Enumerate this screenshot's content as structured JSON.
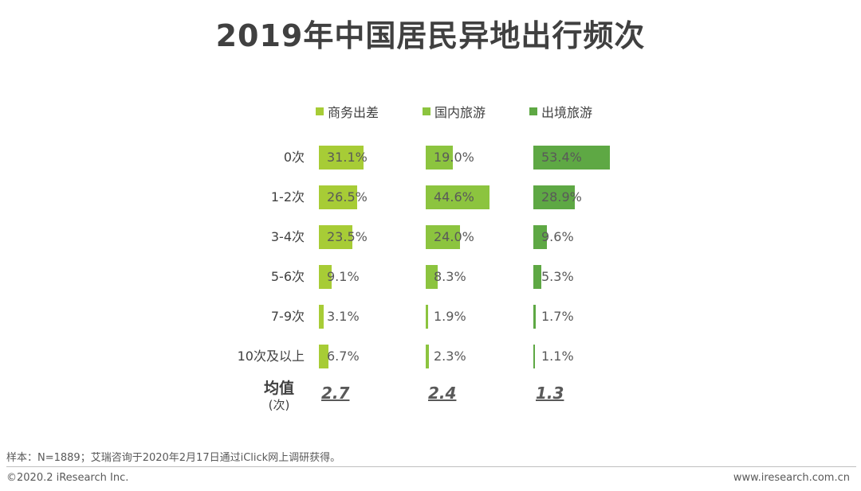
{
  "header": {
    "title": "2019年中国居民异地出行频次"
  },
  "chart_data": {
    "type": "bar",
    "title": "2019年中国居民异地出行频次",
    "categories": [
      "0次",
      "1-2次",
      "3-4次",
      "5-6次",
      "7-9次",
      "10次及以上"
    ],
    "series": [
      {
        "name": "商务出差",
        "color": "#a7cc36",
        "values": [
          31.1,
          26.5,
          23.5,
          9.1,
          3.1,
          6.7
        ],
        "labels": [
          "31.1%",
          "26.5%",
          "23.5%",
          "9.1%",
          "3.1%",
          "6.7%"
        ],
        "average": "2.7"
      },
      {
        "name": "国内旅游",
        "color": "#8cc43f",
        "values": [
          19.0,
          44.6,
          24.0,
          8.3,
          1.9,
          2.3
        ],
        "labels": [
          "19.0%",
          "44.6%",
          "24.0%",
          "8.3%",
          "1.9%",
          "2.3%"
        ],
        "average": "2.4"
      },
      {
        "name": "出境旅游",
        "color": "#5ea844",
        "values": [
          53.4,
          28.9,
          9.6,
          5.3,
          1.7,
          1.1
        ],
        "labels": [
          "53.4%",
          "28.9%",
          "9.6%",
          "5.3%",
          "1.7%",
          "1.1%"
        ],
        "average": "1.3"
      }
    ],
    "xlim": [
      0,
      60
    ],
    "average_label": "均值",
    "average_unit": "(次)"
  },
  "footer": {
    "note": "样本：N=1889；艾瑞咨询于2020年2月17日通过iClick网上调研获得。",
    "copyright": "©2020.2 iResearch Inc.",
    "site": "www.iresearch.com.cn"
  }
}
